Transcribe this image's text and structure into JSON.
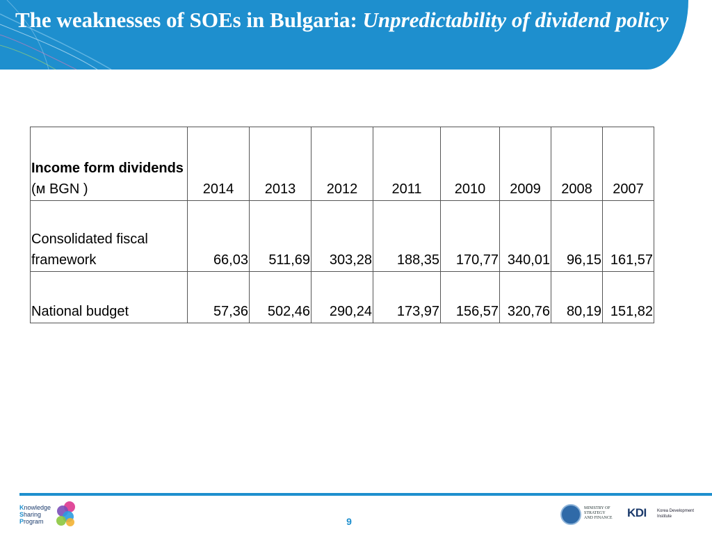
{
  "slide": {
    "title_plain": "The weaknesses of SOEs in Bulgaria: ",
    "title_italic": "Unpredictability of dividend policy",
    "page_number": "9"
  },
  "table": {
    "header": {
      "label_bold": "Income form dividends",
      "label_unit": " (м BGN )",
      "years": [
        "2014",
        "2013",
        "2012",
        "2011",
        "2010",
        "2009",
        "2008",
        "2007"
      ]
    },
    "rows": [
      {
        "label": "Consolidated fiscal framework",
        "values": [
          "66,03",
          "511,69",
          "303,28",
          "188,35",
          "170,77",
          "340,01",
          "96,15",
          "161,57"
        ]
      },
      {
        "label": "National budget",
        "values": [
          "57,36",
          "502,46",
          "290,24",
          "173,97",
          "156,57",
          "320,76",
          "80,19",
          "151,82"
        ]
      }
    ]
  },
  "footer": {
    "ksp_lines": [
      {
        "initial": "K",
        "rest": "nowledge"
      },
      {
        "initial": "S",
        "rest": "haring"
      },
      {
        "initial": "P",
        "rest": "rogram"
      }
    ],
    "ministry_lines": [
      "MINISTRY OF",
      "STRATEGY",
      "AND FINANCE"
    ],
    "kdi_mark": "KDI",
    "kdi_lines": [
      "Korea Development",
      "Institute"
    ]
  },
  "colors": {
    "header_blue": "#1e8fce",
    "accent_blue": "#1e8fce"
  }
}
